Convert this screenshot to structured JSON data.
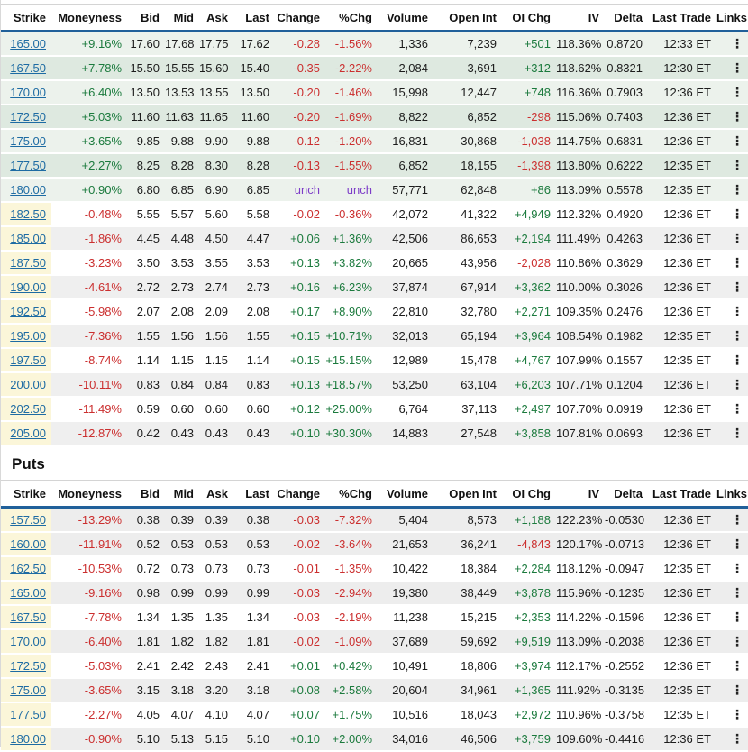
{
  "icons": {
    "row_menu": "⋮"
  },
  "colors": {
    "header_rule_blue": "#20609a",
    "positive_green": "#1b7a3d",
    "negative_red": "#cb2f2f",
    "unchanged_purple": "#7d3dc8",
    "strike_link_blue": "#1d6ba3",
    "itm_row_green_light": "#ecf2ec",
    "itm_row_green_dark": "#dee9e0",
    "otm_row_gray": "#efefef",
    "otm_strike_yellow": "#fbf6d9"
  },
  "calls": {
    "columns": [
      "Strike",
      "Moneyness",
      "Bid",
      "Mid",
      "Ask",
      "Last",
      "Change",
      "%Chg",
      "Volume",
      "Open Int",
      "OI Chg",
      "IV",
      "Delta",
      "Last Trade",
      "Links"
    ],
    "rows": [
      {
        "strike": "165.00",
        "moneyness": "+9.16%",
        "bid": "17.60",
        "mid": "17.68",
        "ask": "17.75",
        "last": "17.62",
        "change": "-0.28",
        "pchg": "-1.56%",
        "volume": "1,336",
        "open_int": "7,239",
        "oi_chg": "+501",
        "iv": "118.36%",
        "delta": "0.8720",
        "last_trade": "12:33 ET"
      },
      {
        "strike": "167.50",
        "moneyness": "+7.78%",
        "bid": "15.50",
        "mid": "15.55",
        "ask": "15.60",
        "last": "15.40",
        "change": "-0.35",
        "pchg": "-2.22%",
        "volume": "2,084",
        "open_int": "3,691",
        "oi_chg": "+312",
        "iv": "118.62%",
        "delta": "0.8321",
        "last_trade": "12:30 ET"
      },
      {
        "strike": "170.00",
        "moneyness": "+6.40%",
        "bid": "13.50",
        "mid": "13.53",
        "ask": "13.55",
        "last": "13.50",
        "change": "-0.20",
        "pchg": "-1.46%",
        "volume": "15,998",
        "open_int": "12,447",
        "oi_chg": "+748",
        "iv": "116.36%",
        "delta": "0.7903",
        "last_trade": "12:36 ET"
      },
      {
        "strike": "172.50",
        "moneyness": "+5.03%",
        "bid": "11.60",
        "mid": "11.63",
        "ask": "11.65",
        "last": "11.60",
        "change": "-0.20",
        "pchg": "-1.69%",
        "volume": "8,822",
        "open_int": "6,852",
        "oi_chg": "-298",
        "iv": "115.06%",
        "delta": "0.7403",
        "last_trade": "12:36 ET"
      },
      {
        "strike": "175.00",
        "moneyness": "+3.65%",
        "bid": "9.85",
        "mid": "9.88",
        "ask": "9.90",
        "last": "9.88",
        "change": "-0.12",
        "pchg": "-1.20%",
        "volume": "16,831",
        "open_int": "30,868",
        "oi_chg": "-1,038",
        "iv": "114.75%",
        "delta": "0.6831",
        "last_trade": "12:36 ET"
      },
      {
        "strike": "177.50",
        "moneyness": "+2.27%",
        "bid": "8.25",
        "mid": "8.28",
        "ask": "8.30",
        "last": "8.28",
        "change": "-0.13",
        "pchg": "-1.55%",
        "volume": "6,852",
        "open_int": "18,155",
        "oi_chg": "-1,398",
        "iv": "113.80%",
        "delta": "0.6222",
        "last_trade": "12:35 ET"
      },
      {
        "strike": "180.00",
        "moneyness": "+0.90%",
        "bid": "6.80",
        "mid": "6.85",
        "ask": "6.90",
        "last": "6.85",
        "change": "unch",
        "pchg": "unch",
        "volume": "57,771",
        "open_int": "62,848",
        "oi_chg": "+86",
        "iv": "113.09%",
        "delta": "0.5578",
        "last_trade": "12:35 ET"
      },
      {
        "strike": "182.50",
        "moneyness": "-0.48%",
        "bid": "5.55",
        "mid": "5.57",
        "ask": "5.60",
        "last": "5.58",
        "change": "-0.02",
        "pchg": "-0.36%",
        "volume": "42,072",
        "open_int": "41,322",
        "oi_chg": "+4,949",
        "iv": "112.32%",
        "delta": "0.4920",
        "last_trade": "12:36 ET"
      },
      {
        "strike": "185.00",
        "moneyness": "-1.86%",
        "bid": "4.45",
        "mid": "4.48",
        "ask": "4.50",
        "last": "4.47",
        "change": "+0.06",
        "pchg": "+1.36%",
        "volume": "42,506",
        "open_int": "86,653",
        "oi_chg": "+2,194",
        "iv": "111.49%",
        "delta": "0.4263",
        "last_trade": "12:36 ET"
      },
      {
        "strike": "187.50",
        "moneyness": "-3.23%",
        "bid": "3.50",
        "mid": "3.53",
        "ask": "3.55",
        "last": "3.53",
        "change": "+0.13",
        "pchg": "+3.82%",
        "volume": "20,665",
        "open_int": "43,956",
        "oi_chg": "-2,028",
        "iv": "110.86%",
        "delta": "0.3629",
        "last_trade": "12:36 ET"
      },
      {
        "strike": "190.00",
        "moneyness": "-4.61%",
        "bid": "2.72",
        "mid": "2.73",
        "ask": "2.74",
        "last": "2.73",
        "change": "+0.16",
        "pchg": "+6.23%",
        "volume": "37,874",
        "open_int": "67,914",
        "oi_chg": "+3,362",
        "iv": "110.00%",
        "delta": "0.3026",
        "last_trade": "12:36 ET"
      },
      {
        "strike": "192.50",
        "moneyness": "-5.98%",
        "bid": "2.07",
        "mid": "2.08",
        "ask": "2.09",
        "last": "2.08",
        "change": "+0.17",
        "pchg": "+8.90%",
        "volume": "22,810",
        "open_int": "32,780",
        "oi_chg": "+2,271",
        "iv": "109.35%",
        "delta": "0.2476",
        "last_trade": "12:36 ET"
      },
      {
        "strike": "195.00",
        "moneyness": "-7.36%",
        "bid": "1.55",
        "mid": "1.56",
        "ask": "1.56",
        "last": "1.55",
        "change": "+0.15",
        "pchg": "+10.71%",
        "volume": "32,013",
        "open_int": "65,194",
        "oi_chg": "+3,964",
        "iv": "108.54%",
        "delta": "0.1982",
        "last_trade": "12:35 ET"
      },
      {
        "strike": "197.50",
        "moneyness": "-8.74%",
        "bid": "1.14",
        "mid": "1.15",
        "ask": "1.15",
        "last": "1.14",
        "change": "+0.15",
        "pchg": "+15.15%",
        "volume": "12,989",
        "open_int": "15,478",
        "oi_chg": "+4,767",
        "iv": "107.99%",
        "delta": "0.1557",
        "last_trade": "12:35 ET"
      },
      {
        "strike": "200.00",
        "moneyness": "-10.11%",
        "bid": "0.83",
        "mid": "0.84",
        "ask": "0.84",
        "last": "0.83",
        "change": "+0.13",
        "pchg": "+18.57%",
        "volume": "53,250",
        "open_int": "63,104",
        "oi_chg": "+6,203",
        "iv": "107.71%",
        "delta": "0.1204",
        "last_trade": "12:36 ET"
      },
      {
        "strike": "202.50",
        "moneyness": "-11.49%",
        "bid": "0.59",
        "mid": "0.60",
        "ask": "0.60",
        "last": "0.60",
        "change": "+0.12",
        "pchg": "+25.00%",
        "volume": "6,764",
        "open_int": "37,113",
        "oi_chg": "+2,497",
        "iv": "107.70%",
        "delta": "0.0919",
        "last_trade": "12:36 ET"
      },
      {
        "strike": "205.00",
        "moneyness": "-12.87%",
        "bid": "0.42",
        "mid": "0.43",
        "ask": "0.43",
        "last": "0.43",
        "change": "+0.10",
        "pchg": "+30.30%",
        "volume": "14,883",
        "open_int": "27,548",
        "oi_chg": "+3,858",
        "iv": "107.81%",
        "delta": "0.0693",
        "last_trade": "12:36 ET"
      }
    ]
  },
  "puts": {
    "heading": "Puts",
    "columns": [
      "Strike",
      "Moneyness",
      "Bid",
      "Mid",
      "Ask",
      "Last",
      "Change",
      "%Chg",
      "Volume",
      "Open Int",
      "OI Chg",
      "IV",
      "Delta",
      "Last Trade",
      "Links"
    ],
    "rows": [
      {
        "strike": "157.50",
        "moneyness": "-13.29%",
        "bid": "0.38",
        "mid": "0.39",
        "ask": "0.39",
        "last": "0.38",
        "change": "-0.03",
        "pchg": "-7.32%",
        "volume": "5,404",
        "open_int": "8,573",
        "oi_chg": "+1,188",
        "iv": "122.23%",
        "delta": "-0.0530",
        "last_trade": "12:36 ET"
      },
      {
        "strike": "160.00",
        "moneyness": "-11.91%",
        "bid": "0.52",
        "mid": "0.53",
        "ask": "0.53",
        "last": "0.53",
        "change": "-0.02",
        "pchg": "-3.64%",
        "volume": "21,653",
        "open_int": "36,241",
        "oi_chg": "-4,843",
        "iv": "120.17%",
        "delta": "-0.0713",
        "last_trade": "12:36 ET"
      },
      {
        "strike": "162.50",
        "moneyness": "-10.53%",
        "bid": "0.72",
        "mid": "0.73",
        "ask": "0.73",
        "last": "0.73",
        "change": "-0.01",
        "pchg": "-1.35%",
        "volume": "10,422",
        "open_int": "18,384",
        "oi_chg": "+2,284",
        "iv": "118.12%",
        "delta": "-0.0947",
        "last_trade": "12:35 ET"
      },
      {
        "strike": "165.00",
        "moneyness": "-9.16%",
        "bid": "0.98",
        "mid": "0.99",
        "ask": "0.99",
        "last": "0.99",
        "change": "-0.03",
        "pchg": "-2.94%",
        "volume": "19,380",
        "open_int": "38,449",
        "oi_chg": "+3,878",
        "iv": "115.96%",
        "delta": "-0.1235",
        "last_trade": "12:36 ET"
      },
      {
        "strike": "167.50",
        "moneyness": "-7.78%",
        "bid": "1.34",
        "mid": "1.35",
        "ask": "1.35",
        "last": "1.34",
        "change": "-0.03",
        "pchg": "-2.19%",
        "volume": "11,238",
        "open_int": "15,215",
        "oi_chg": "+2,353",
        "iv": "114.22%",
        "delta": "-0.1596",
        "last_trade": "12:36 ET"
      },
      {
        "strike": "170.00",
        "moneyness": "-6.40%",
        "bid": "1.81",
        "mid": "1.82",
        "ask": "1.82",
        "last": "1.81",
        "change": "-0.02",
        "pchg": "-1.09%",
        "volume": "37,689",
        "open_int": "59,692",
        "oi_chg": "+9,519",
        "iv": "113.09%",
        "delta": "-0.2038",
        "last_trade": "12:36 ET"
      },
      {
        "strike": "172.50",
        "moneyness": "-5.03%",
        "bid": "2.41",
        "mid": "2.42",
        "ask": "2.43",
        "last": "2.41",
        "change": "+0.01",
        "pchg": "+0.42%",
        "volume": "10,491",
        "open_int": "18,806",
        "oi_chg": "+3,974",
        "iv": "112.17%",
        "delta": "-0.2552",
        "last_trade": "12:36 ET"
      },
      {
        "strike": "175.00",
        "moneyness": "-3.65%",
        "bid": "3.15",
        "mid": "3.18",
        "ask": "3.20",
        "last": "3.18",
        "change": "+0.08",
        "pchg": "+2.58%",
        "volume": "20,604",
        "open_int": "34,961",
        "oi_chg": "+1,365",
        "iv": "111.92%",
        "delta": "-0.3135",
        "last_trade": "12:35 ET"
      },
      {
        "strike": "177.50",
        "moneyness": "-2.27%",
        "bid": "4.05",
        "mid": "4.07",
        "ask": "4.10",
        "last": "4.07",
        "change": "+0.07",
        "pchg": "+1.75%",
        "volume": "10,516",
        "open_int": "18,043",
        "oi_chg": "+2,972",
        "iv": "110.96%",
        "delta": "-0.3758",
        "last_trade": "12:35 ET"
      },
      {
        "strike": "180.00",
        "moneyness": "-0.90%",
        "bid": "5.10",
        "mid": "5.13",
        "ask": "5.15",
        "last": "5.10",
        "change": "+0.10",
        "pchg": "+2.00%",
        "volume": "34,016",
        "open_int": "46,506",
        "oi_chg": "+3,759",
        "iv": "109.60%",
        "delta": "-0.4416",
        "last_trade": "12:36 ET"
      }
    ]
  }
}
